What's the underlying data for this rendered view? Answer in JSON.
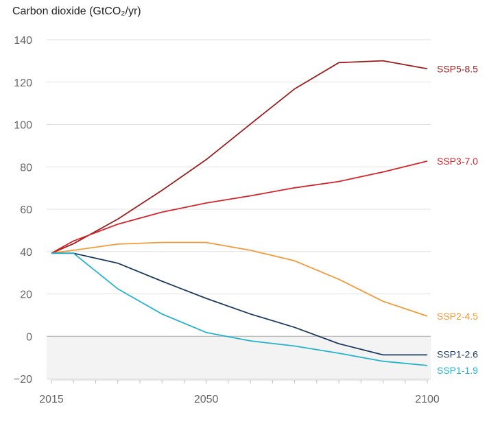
{
  "chart_data": {
    "type": "line",
    "title": "Carbon dioxide (GtCO₂/yr)",
    "xlabel": "",
    "ylabel": "",
    "xlim": [
      2015,
      2100
    ],
    "ylim": [
      -20,
      140
    ],
    "yticks": [
      140,
      120,
      100,
      80,
      60,
      40,
      20,
      0,
      -20
    ],
    "xticks": [
      2015,
      2050,
      2100
    ],
    "grid": true,
    "legend": "inline labels at line ends",
    "series": [
      {
        "name": "SSP5-8.5",
        "color": "#9b1d1d",
        "x": [
          2015,
          2020,
          2030,
          2040,
          2050,
          2060,
          2070,
          2080,
          2090,
          2100
        ],
        "y": [
          39.2,
          43.7,
          55.3,
          68.9,
          83.4,
          100.2,
          116.8,
          129.2,
          130.1,
          126.3
        ]
      },
      {
        "name": "SSP3-7.0",
        "color": "#d4242a",
        "x": [
          2015,
          2020,
          2030,
          2040,
          2050,
          2060,
          2070,
          2080,
          2090,
          2100
        ],
        "y": [
          39.2,
          45.0,
          52.9,
          58.6,
          62.9,
          66.3,
          70.1,
          73.1,
          77.6,
          82.7
        ]
      },
      {
        "name": "SSP2-4.5",
        "color": "#f29a38",
        "x": [
          2015,
          2020,
          2030,
          2040,
          2050,
          2060,
          2070,
          2080,
          2090,
          2100
        ],
        "y": [
          39.2,
          40.6,
          43.5,
          44.3,
          44.3,
          40.6,
          35.6,
          26.9,
          16.5,
          9.5
        ]
      },
      {
        "name": "SSP1-2.6",
        "color": "#1b3a5e",
        "x": [
          2015,
          2020,
          2030,
          2040,
          2050,
          2060,
          2070,
          2080,
          2090,
          2100
        ],
        "y": [
          39.2,
          39.2,
          34.5,
          26.0,
          17.9,
          10.5,
          4.2,
          -3.5,
          -8.8,
          -8.8
        ]
      },
      {
        "name": "SSP1-1.9",
        "color": "#24b2cc",
        "x": [
          2015,
          2020,
          2030,
          2040,
          2050,
          2060,
          2070,
          2080,
          2090,
          2100
        ],
        "y": [
          39.2,
          39.2,
          22.4,
          10.5,
          1.8,
          -2.2,
          -4.6,
          -8.0,
          -11.8,
          -13.8
        ]
      }
    ]
  }
}
